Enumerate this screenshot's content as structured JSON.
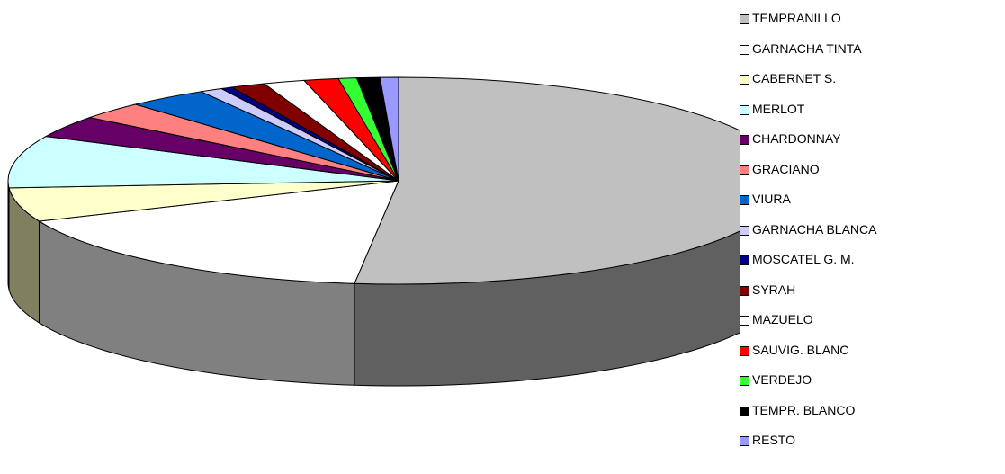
{
  "chart_data": {
    "type": "pie",
    "style": "3d",
    "start_angle": "12 o'clock, clockwise",
    "legend_position": "right",
    "categories": [
      "TEMPRANILLO",
      "GARNACHA TINTA",
      "CABERNET S.",
      "MERLOT",
      "CHARDONNAY",
      "GRACIANO",
      "VIURA",
      "GARNACHA BLANCA",
      "MOSCATEL G. M.",
      "SYRAH",
      "MAZUELO",
      "SAUVIG. BLANC",
      "VERDEJO",
      "TEMPR. BLANCO",
      "RESTO"
    ],
    "values": [
      54.6,
      17.7,
      5.6,
      8.6,
      3.6,
      2.9,
      3.5,
      1.0,
      0.5,
      1.5,
      1.8,
      1.5,
      0.8,
      1.0,
      0.8
    ],
    "colors": [
      "#c0c0c0",
      "#ffffff",
      "#ffffcc",
      "#ccffff",
      "#660066",
      "#ff8080",
      "#0066cc",
      "#ccccff",
      "#000080",
      "#800000",
      "#ffffff",
      "#ff0000",
      "#33ff33",
      "#000000",
      "#9999ff"
    ]
  }
}
